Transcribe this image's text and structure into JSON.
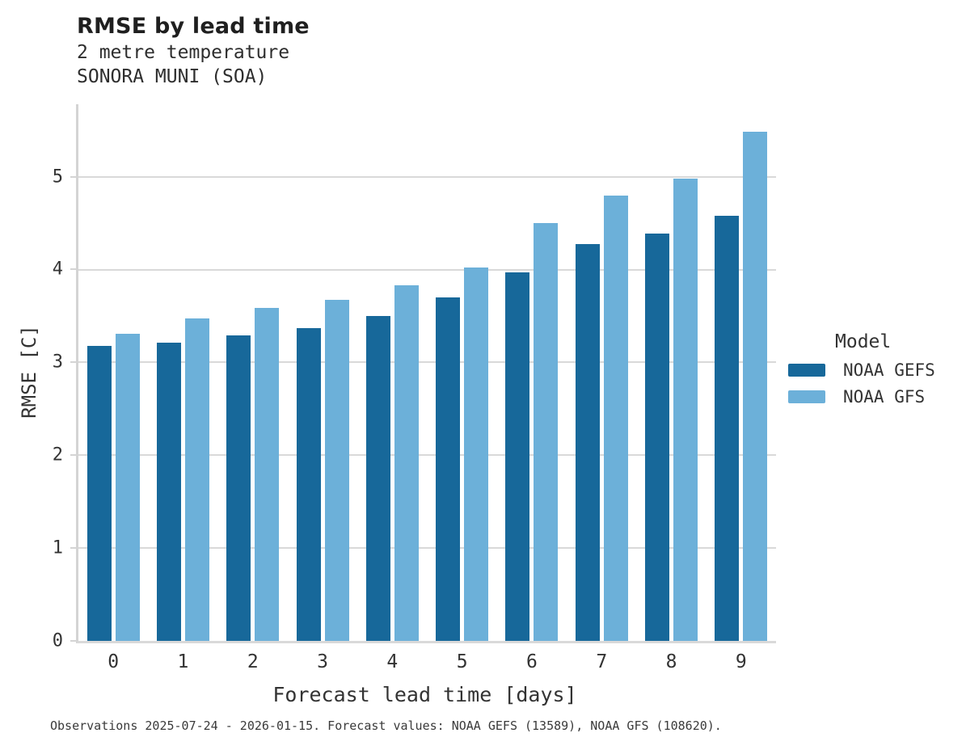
{
  "chart_data": {
    "type": "bar",
    "title": "RMSE by lead time",
    "subtitle_lines": [
      "2 metre temperature",
      "SONORA MUNI (SOA)"
    ],
    "xlabel": "Forecast lead time [days]",
    "ylabel": "RMSE [C]",
    "categories": [
      "0",
      "1",
      "2",
      "3",
      "4",
      "5",
      "6",
      "7",
      "8",
      "9"
    ],
    "series": [
      {
        "name": "NOAA GEFS",
        "color": "#17689a",
        "values": [
          3.18,
          3.21,
          3.29,
          3.37,
          3.5,
          3.7,
          3.97,
          4.27,
          4.39,
          4.58
        ]
      },
      {
        "name": "NOAA GFS",
        "color": "#6cb0d9",
        "values": [
          3.31,
          3.47,
          3.59,
          3.67,
          3.83,
          4.02,
          4.5,
          4.8,
          4.98,
          5.48
        ]
      }
    ],
    "yticks": [
      0,
      1,
      2,
      3,
      4,
      5
    ],
    "ylim": [
      0,
      5.78
    ],
    "grid": true,
    "legend_title": "Model",
    "legend_position": "right",
    "caption": "Observations 2025-07-24 - 2026-01-15. Forecast values: NOAA GEFS (13589), NOAA GFS (108620)."
  },
  "colors": {
    "grid": "#d9d9d9",
    "spine": "#d4d4d4",
    "text": "#333333",
    "title_text": "#1f1f1f",
    "background": "#ffffff"
  }
}
